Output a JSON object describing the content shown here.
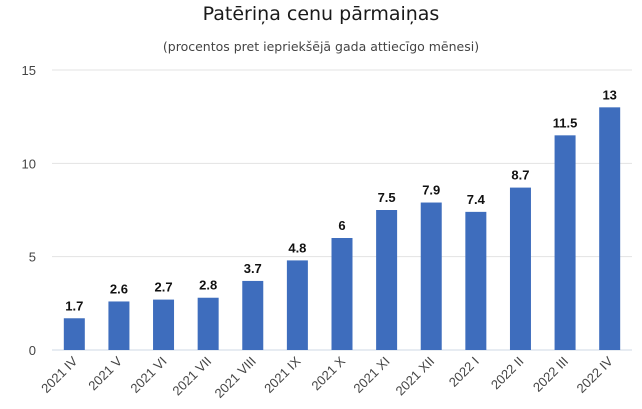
{
  "chart_data": {
    "type": "bar",
    "title": "Patēriņa cenu pārmaiņas",
    "subtitle": "(procentos pret iepriekšējā gada attiecīgo mēnesi)",
    "xlabel": "",
    "ylabel": "",
    "ylim": [
      0,
      15
    ],
    "yticks": [
      0,
      5,
      10,
      15
    ],
    "grid": true,
    "legend": "none",
    "bar_color": "#3e6dbd",
    "categories": [
      "2021 IV",
      "2021 V",
      "2021 VI",
      "2021 VII",
      "2021 VIII",
      "2021 IX",
      "2021 X",
      "2021 XI",
      "2021 XII",
      "2022 I",
      "2022 II",
      "2022 III",
      "2022 IV"
    ],
    "values": [
      1.7,
      2.6,
      2.7,
      2.8,
      3.7,
      4.8,
      6,
      7.5,
      7.9,
      7.4,
      8.7,
      11.5,
      13
    ],
    "data_labels": [
      "1.7",
      "2.6",
      "2.7",
      "2.8",
      "3.7",
      "4.8",
      "6",
      "7.5",
      "7.9",
      "7.4",
      "8.7",
      "11.5",
      "13"
    ]
  }
}
